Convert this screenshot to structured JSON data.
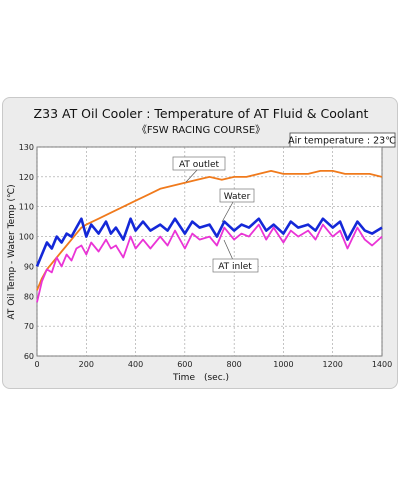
{
  "colors": {
    "at_outlet": "#f07a1c",
    "water": "#1428d8",
    "at_inlet": "#ea34d6",
    "grid": "#8a8a8a",
    "plot_bg": "#ffffff",
    "frame_bg": "#ececec"
  },
  "chart_data": {
    "type": "line",
    "title": "Z33 AT Oil Cooler : Temperature of AT Fluid & Coolant",
    "subtitle": "《FSW RACING COURSE》",
    "note": "Air temperature : 23℃",
    "xlabel": "Time　(sec.)",
    "ylabel": "AT Oil Temp - Water Temp (℃)",
    "xlim": [
      0,
      1400
    ],
    "ylim": [
      60,
      130
    ],
    "x_ticks": [
      "0",
      "200",
      "400",
      "600",
      "800",
      "1000",
      "1200",
      "1400"
    ],
    "y_ticks": [
      "60",
      "70",
      "80",
      "90",
      "100",
      "110",
      "120",
      "130"
    ],
    "grid": true,
    "series": [
      {
        "name": "AT outlet",
        "x": [
          0,
          20,
          40,
          60,
          80,
          100,
          120,
          140,
          160,
          180,
          200,
          250,
          300,
          350,
          400,
          450,
          500,
          550,
          600,
          650,
          700,
          750,
          800,
          850,
          900,
          950,
          1000,
          1050,
          1100,
          1150,
          1200,
          1250,
          1300,
          1350,
          1400
        ],
        "values": [
          82,
          86,
          89,
          91,
          93,
          95,
          97,
          99,
          101,
          103,
          104,
          106,
          108,
          110,
          112,
          114,
          116,
          117,
          118,
          119,
          120,
          119,
          120,
          120,
          121,
          122,
          121,
          121,
          121,
          122,
          122,
          121,
          121,
          121,
          120
        ]
      },
      {
        "name": "Water",
        "x": [
          0,
          20,
          40,
          60,
          80,
          100,
          120,
          140,
          160,
          180,
          200,
          220,
          250,
          280,
          300,
          320,
          350,
          380,
          400,
          430,
          460,
          500,
          530,
          560,
          600,
          630,
          660,
          700,
          730,
          760,
          800,
          830,
          860,
          900,
          930,
          960,
          1000,
          1030,
          1060,
          1100,
          1130,
          1160,
          1200,
          1230,
          1260,
          1300,
          1330,
          1360,
          1400
        ],
        "values": [
          90,
          94,
          98,
          96,
          100,
          98,
          101,
          100,
          103,
          106,
          100,
          104,
          101,
          105,
          101,
          103,
          99,
          106,
          102,
          105,
          102,
          104,
          102,
          106,
          101,
          105,
          103,
          104,
          100,
          105,
          102,
          104,
          103,
          106,
          102,
          104,
          101,
          105,
          103,
          104,
          102,
          106,
          103,
          105,
          99,
          105,
          102,
          101,
          103
        ]
      },
      {
        "name": "AT inlet",
        "x": [
          0,
          20,
          40,
          60,
          80,
          100,
          120,
          140,
          160,
          180,
          200,
          220,
          250,
          280,
          300,
          320,
          350,
          380,
          400,
          430,
          460,
          500,
          530,
          560,
          600,
          630,
          660,
          700,
          730,
          760,
          800,
          830,
          860,
          900,
          930,
          960,
          1000,
          1030,
          1060,
          1100,
          1130,
          1160,
          1200,
          1230,
          1260,
          1300,
          1330,
          1360,
          1400
        ],
        "values": [
          78,
          85,
          89,
          88,
          93,
          90,
          94,
          92,
          96,
          97,
          94,
          98,
          95,
          99,
          96,
          97,
          93,
          100,
          96,
          99,
          96,
          100,
          97,
          102,
          96,
          101,
          99,
          100,
          97,
          103,
          99,
          101,
          100,
          104,
          99,
          103,
          98,
          102,
          100,
          102,
          99,
          104,
          100,
          102,
          96,
          103,
          99,
          97,
          100
        ]
      }
    ]
  }
}
